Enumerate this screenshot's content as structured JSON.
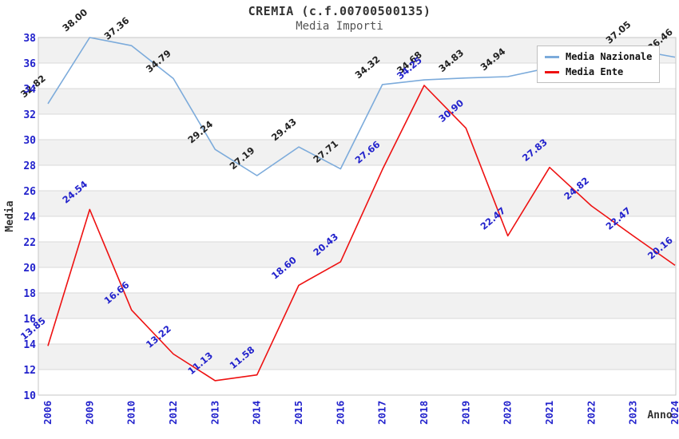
{
  "title": "CREMIA (c.f.00700500135)",
  "subtitle": "Media Importi",
  "legend": [
    {
      "name": "Media Nazionale",
      "color": "#7cabdb"
    },
    {
      "name": "Media Ente",
      "color": "#ee1111"
    }
  ],
  "chart_data": {
    "type": "line",
    "title": "CREMIA (c.f.00700500135)",
    "subtitle": "Media Importi",
    "xlabel": "Anno",
    "ylabel": "Media",
    "ylim": [
      10,
      38
    ],
    "ytick_step": 2,
    "ytick_labels": [
      "10",
      "12",
      "14",
      "16",
      "18",
      "20",
      "22",
      "24",
      "26",
      "28",
      "30",
      "32",
      "34",
      "36",
      "38"
    ],
    "grid": "horizontal-bands",
    "band_color": "#f1f1f1",
    "gridline_color": "#d9d9d9",
    "plot_border_color": "#c6c6c6",
    "tick_color": "#2222cc",
    "legend_position": "top-right",
    "categories": [
      "2006",
      "2009",
      "2010",
      "2012",
      "2013",
      "2014",
      "2015",
      "2016",
      "2017",
      "2018",
      "2019",
      "2020",
      "2021",
      "2022",
      "2023",
      "2024"
    ],
    "series": [
      {
        "name": "Media Nazionale",
        "color": "#7cabdb",
        "label_color": "#222222",
        "values": [
          32.82,
          38.0,
          37.36,
          34.79,
          29.24,
          27.19,
          29.43,
          27.71,
          34.32,
          34.68,
          34.83,
          34.94,
          35.64,
          36.35,
          37.05,
          36.46
        ],
        "labels": [
          "32.82",
          "38.00",
          "37.36",
          "34.79",
          "29.24",
          "27.19",
          "29.43",
          "27.71",
          "34.32",
          "34.68",
          "34.83",
          "34.94",
          "",
          "",
          "37.05",
          "36.46"
        ]
      },
      {
        "name": "Media Ente",
        "color": "#ee1111",
        "label_color": "#2222cc",
        "values": [
          13.85,
          24.54,
          16.66,
          13.22,
          11.13,
          11.58,
          18.6,
          20.43,
          27.66,
          34.25,
          30.9,
          22.47,
          27.83,
          24.82,
          22.47,
          20.16
        ],
        "labels": [
          "13.85",
          "24.54",
          "16.66",
          "13.22",
          "11.13",
          "11.58",
          "18.60",
          "20.43",
          "27.66",
          "34.25",
          "30.90",
          "22.47",
          "27.83",
          "24.82",
          "22.47",
          "20.16"
        ]
      }
    ]
  }
}
